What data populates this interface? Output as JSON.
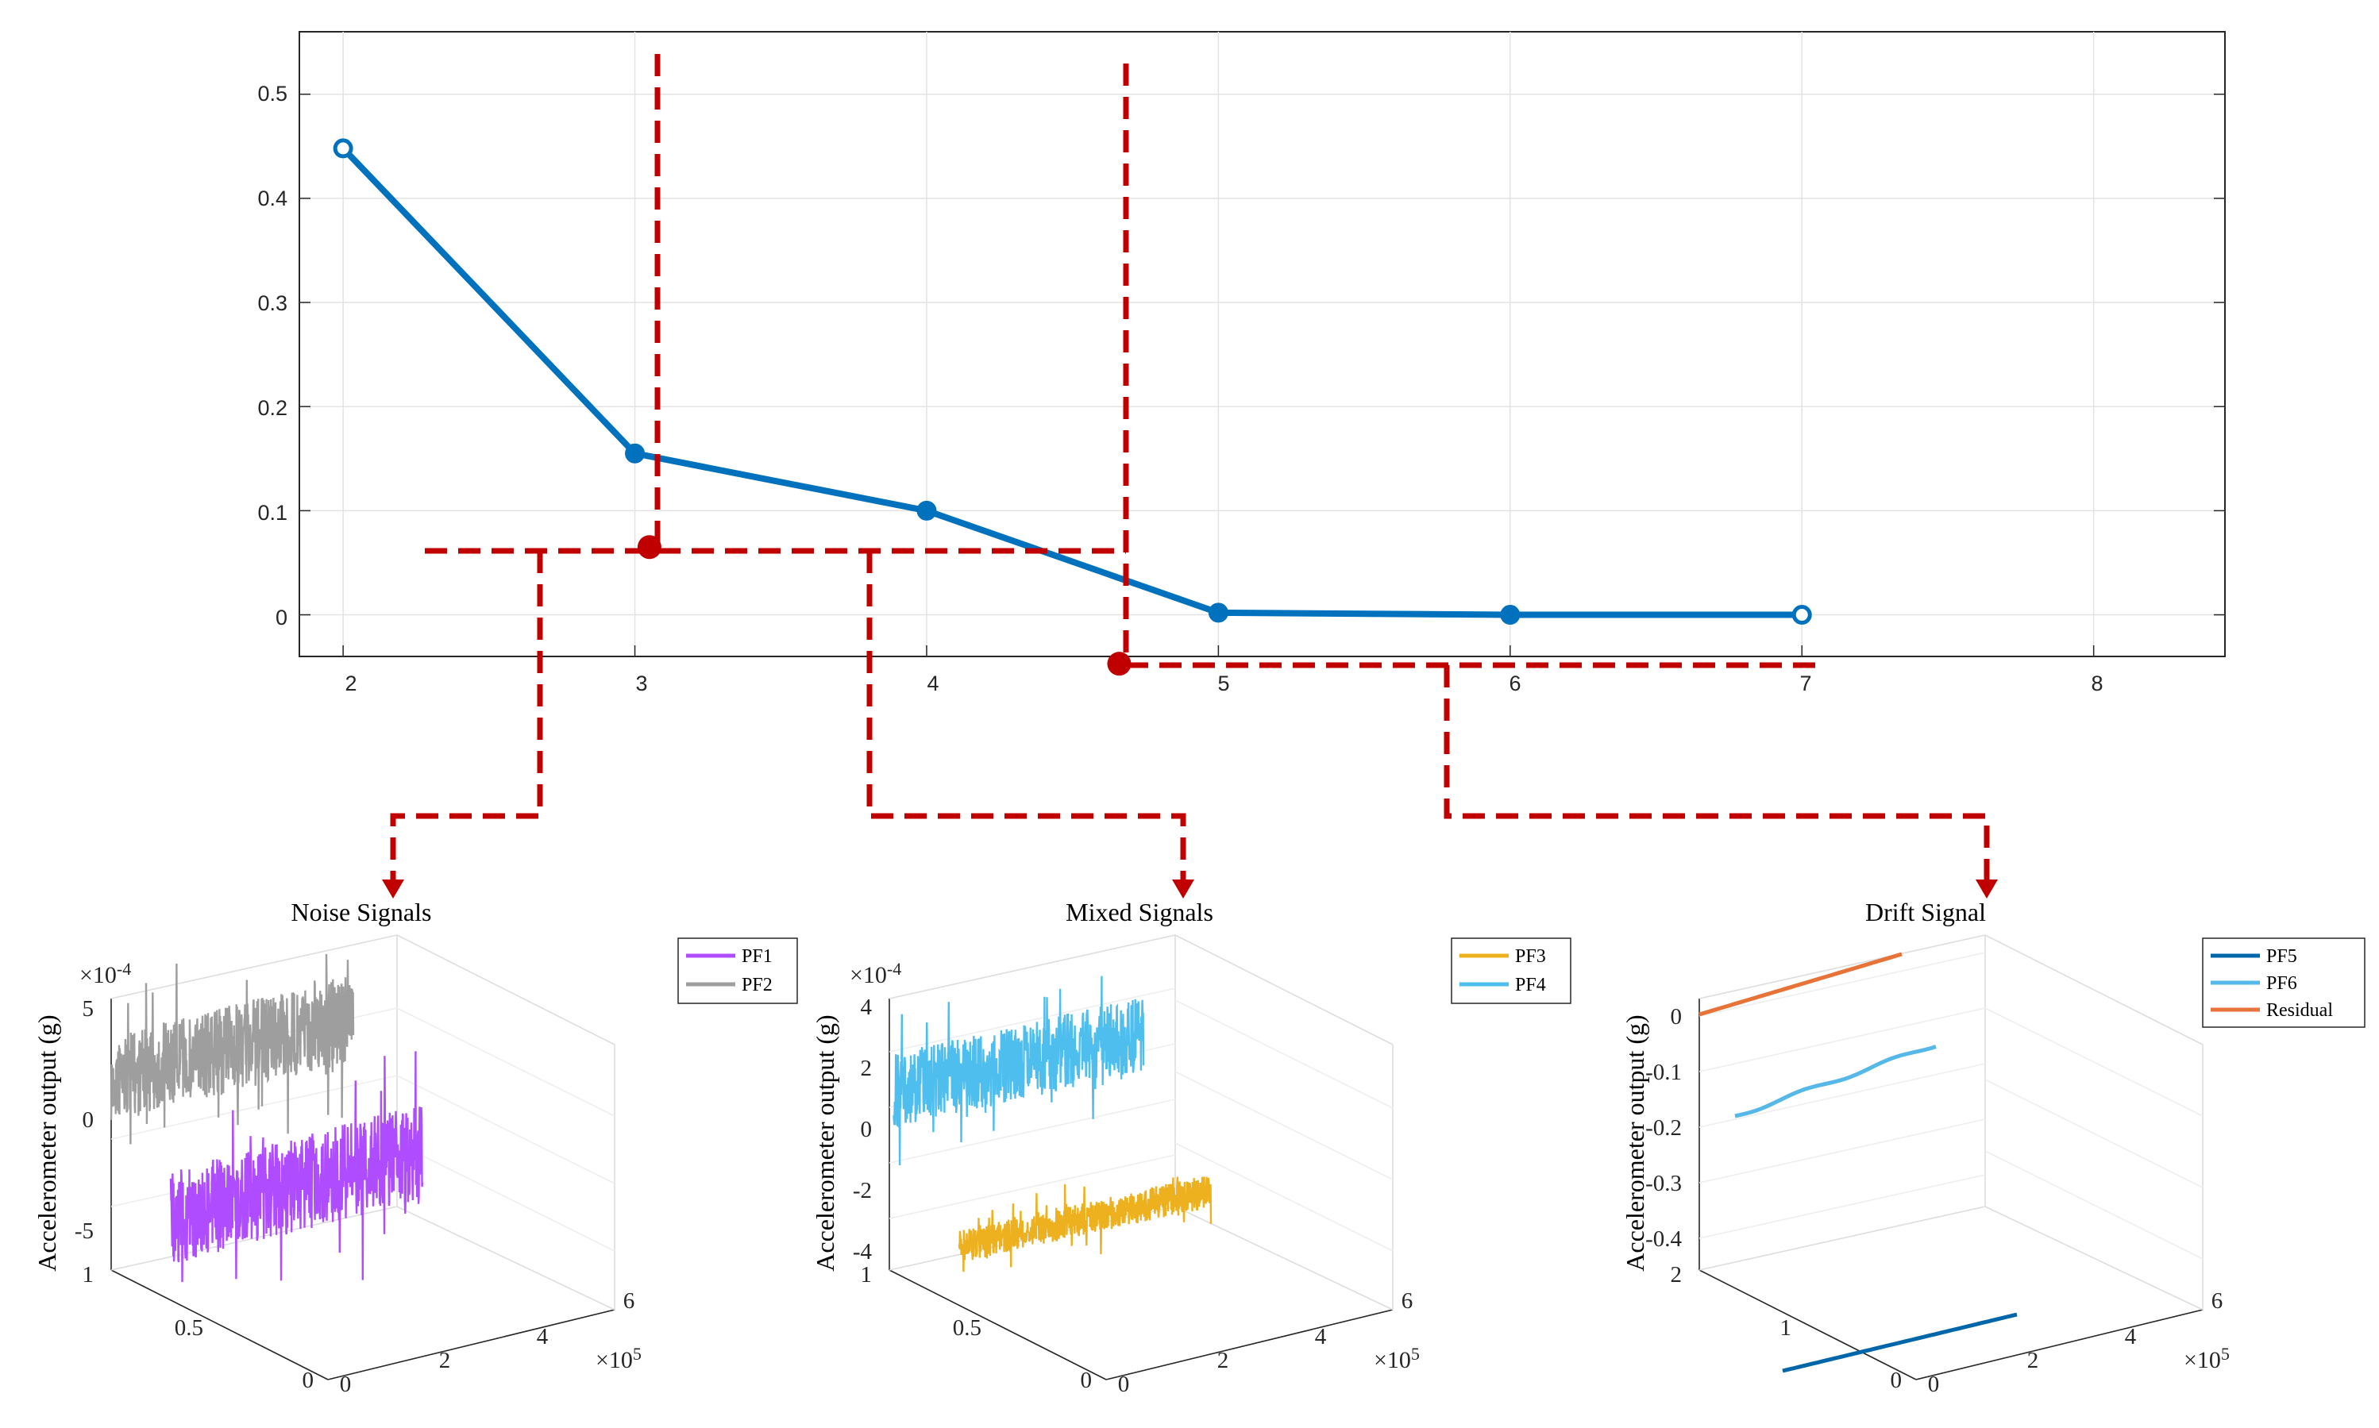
{
  "colors": {
    "main_line": "#0072BD",
    "arrow": "#C00000",
    "grid": "#e3e3e3",
    "axis": "#262626",
    "PF1": "#B04CFF",
    "PF2": "#9E9E9E",
    "PF3": "#EDB120",
    "PF4": "#4DBEEE",
    "PF5": "#0066AA",
    "PF6": "#56B8E8",
    "Residual": "#E87338"
  },
  "chart_data": [
    {
      "id": "main",
      "type": "line",
      "x": [
        2,
        3,
        4,
        5,
        6,
        7
      ],
      "y": [
        0.448,
        0.155,
        0.1,
        0.002,
        0.0,
        0.0
      ],
      "xlim": [
        1.85,
        8.45
      ],
      "ylim": [
        -0.04,
        0.56
      ],
      "xticks": [
        "2",
        "3",
        "4",
        "5",
        "6",
        "7",
        "8"
      ],
      "yticks": [
        "0.5",
        "0.4",
        "0.3",
        "0.2",
        "0.1",
        "0"
      ],
      "grid": true,
      "threshold_markers": [
        {
          "x": 3.05,
          "y": 0.065
        },
        {
          "x": 4.66,
          "y": -0.047
        }
      ]
    },
    {
      "id": "noise",
      "type": "line3d",
      "title": "Noise Signals",
      "ylabel": "Accelerometer output (g)",
      "z_exponent": "×10",
      "z_exponent_power": "-4",
      "x_exponent": "×10",
      "x_exponent_power": "5",
      "zticks": [
        "5",
        "0",
        "-5"
      ],
      "yticks": [
        "1",
        "0.5",
        "0"
      ],
      "xticks": [
        "0",
        "2",
        "4",
        "6"
      ],
      "legend": [
        "PF1",
        "PF2"
      ],
      "series": [
        {
          "name": "PF1",
          "color_key": "PF1",
          "amplitude": 0.00026,
          "y_position": 0,
          "trend": "slightly rising"
        },
        {
          "name": "PF2",
          "color_key": "PF2",
          "amplitude": 0.0003,
          "y_position": 1,
          "trend": "slightly rising"
        }
      ]
    },
    {
      "id": "mixed",
      "type": "line3d",
      "title": "Mixed Signals",
      "ylabel": "Accelerometer output (g)",
      "z_exponent": "×10",
      "z_exponent_power": "-4",
      "x_exponent": "×10",
      "x_exponent_power": "5",
      "zticks": [
        "4",
        "2",
        "0",
        "-2",
        "-4"
      ],
      "yticks": [
        "1",
        "0.5",
        "0"
      ],
      "xticks": [
        "0",
        "2",
        "4",
        "6"
      ],
      "legend": [
        "PF3",
        "PF4"
      ],
      "series": [
        {
          "name": "PF3",
          "color_key": "PF3",
          "amplitude": 0.0001,
          "y_position": 0,
          "trend": "rising"
        },
        {
          "name": "PF4",
          "color_key": "PF4",
          "amplitude": 0.00015,
          "y_position": 1,
          "trend": "slightly rising"
        }
      ]
    },
    {
      "id": "drift",
      "type": "line3d",
      "title": "Drift Signal",
      "ylabel": "Accelerometer output (g)",
      "x_exponent": "×10",
      "x_exponent_power": "5",
      "zticks": [
        "0",
        "-0.1",
        "-0.2",
        "-0.3",
        "-0.4"
      ],
      "yticks": [
        "2",
        "1",
        "0"
      ],
      "xticks": [
        "0",
        "2",
        "4",
        "6"
      ],
      "legend": [
        "PF5",
        "PF6",
        "Residual"
      ],
      "series": [
        {
          "name": "PF5",
          "color_key": "PF5",
          "y_position": 0,
          "trend": "rising drift"
        },
        {
          "name": "PF6",
          "color_key": "PF6",
          "y_position": 1,
          "trend": "rising drift"
        },
        {
          "name": "Residual",
          "color_key": "Residual",
          "y_position": 2,
          "trend": "rising drift"
        }
      ]
    }
  ]
}
